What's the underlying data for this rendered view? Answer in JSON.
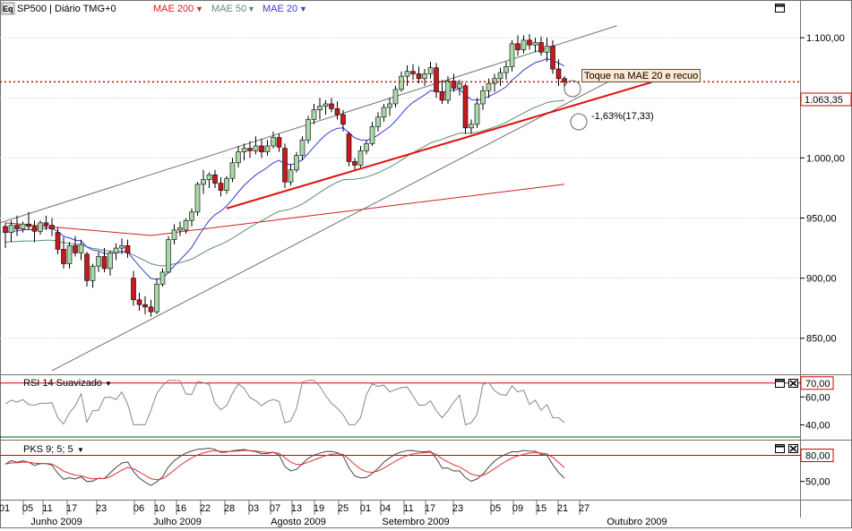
{
  "header": {
    "eq_badge": "Eq",
    "symbol": "SP500 | Diário TMG+0",
    "mae200": "MAE 200",
    "mae50": "MAE 50",
    "mae20": "MAE 20"
  },
  "colors": {
    "mae200": "#d22222",
    "mae50": "#5e8e6c",
    "mae20": "#3a3ad6",
    "up_candle": "#a8d8a8",
    "down_candle": "#c81820",
    "trend_red": "#e01010",
    "channel": "#707070",
    "price_line": "#d00000"
  },
  "annotations": {
    "toque": "Toque na MAE 20 e recuo",
    "percent": "-1,63%(17,33)",
    "last_price": "1.063,35"
  },
  "rsi": {
    "title": "RSI 14 Suavizado",
    "ticks": [
      "70,00",
      "60,00",
      "40,00"
    ]
  },
  "pks": {
    "title": "PKS 9; 5; 5",
    "ticks": [
      "80,00",
      "50,00"
    ]
  },
  "chart_data": {
    "type": "candlestick",
    "ylim": [
      820,
      1118
    ],
    "y_ticks": [
      850,
      900,
      950,
      1000,
      1050,
      1100
    ],
    "y_tick_labels": [
      "850,00",
      "900,00",
      "950,00",
      "1.000,00",
      "1.050,00",
      "1.100,00"
    ],
    "x_day_labels": [
      "01",
      "05",
      "11",
      "17",
      "23",
      "06",
      "10",
      "16",
      "22",
      "28",
      "03",
      "07",
      "13",
      "19",
      "25",
      "01",
      "04",
      "11",
      "17",
      "23",
      "05",
      "09",
      "15",
      "21",
      "27"
    ],
    "x_month_labels": [
      "Junho 2009",
      "Julho 2009",
      "Agosto 2009",
      "Setembro 2009",
      "Outubro 2009"
    ],
    "candles": [
      [
        943,
        946,
        925,
        938
      ],
      [
        938,
        948,
        930,
        944
      ],
      [
        944,
        952,
        935,
        941
      ],
      [
        941,
        947,
        938,
        945
      ],
      [
        945,
        955,
        940,
        943
      ],
      [
        943,
        948,
        930,
        939
      ],
      [
        939,
        948,
        936,
        946
      ],
      [
        946,
        952,
        940,
        944
      ],
      [
        944,
        950,
        935,
        941
      ],
      [
        938,
        942,
        920,
        924
      ],
      [
        924,
        934,
        908,
        912
      ],
      [
        912,
        930,
        908,
        927
      ],
      [
        927,
        935,
        918,
        921
      ],
      [
        921,
        932,
        915,
        928
      ],
      [
        920,
        922,
        893,
        898
      ],
      [
        898,
        912,
        892,
        910
      ],
      [
        910,
        922,
        905,
        918
      ],
      [
        918,
        925,
        905,
        908
      ],
      [
        908,
        923,
        902,
        921
      ],
      [
        921,
        929,
        915,
        925
      ],
      [
        925,
        933,
        920,
        927
      ],
      [
        927,
        932,
        917,
        921
      ],
      [
        900,
        906,
        877,
        882
      ],
      [
        882,
        888,
        873,
        878
      ],
      [
        878,
        885,
        870,
        876
      ],
      [
        876,
        882,
        868,
        872
      ],
      [
        872,
        900,
        870,
        895
      ],
      [
        895,
        908,
        893,
        905
      ],
      [
        905,
        935,
        904,
        932
      ],
      [
        932,
        945,
        928,
        940
      ],
      [
        940,
        947,
        935,
        942
      ],
      [
        940,
        950,
        937,
        948
      ],
      [
        948,
        958,
        943,
        955
      ],
      [
        955,
        980,
        952,
        978
      ],
      [
        978,
        990,
        970,
        982
      ],
      [
        982,
        988,
        975,
        986
      ],
      [
        986,
        990,
        975,
        979
      ],
      [
        979,
        984,
        968,
        973
      ],
      [
        973,
        985,
        970,
        983
      ],
      [
        983,
        1000,
        980,
        996
      ],
      [
        996,
        1010,
        992,
        1005
      ],
      [
        1005,
        1012,
        998,
        1008
      ],
      [
        1008,
        1014,
        1000,
        1006
      ],
      [
        1006,
        1018,
        1003,
        1010
      ],
      [
        1010,
        1016,
        1000,
        1005
      ],
      [
        1005,
        1015,
        1002,
        1010
      ],
      [
        1010,
        1022,
        1008,
        1017
      ],
      [
        1017,
        1020,
        1005,
        1009
      ],
      [
        1008,
        1012,
        975,
        980
      ],
      [
        980,
        995,
        977,
        990
      ],
      [
        990,
        1005,
        988,
        1002
      ],
      [
        1002,
        1018,
        998,
        1015
      ],
      [
        1015,
        1035,
        1012,
        1032
      ],
      [
        1032,
        1045,
        1028,
        1040
      ],
      [
        1040,
        1050,
        1032,
        1043
      ],
      [
        1043,
        1048,
        1036,
        1045
      ],
      [
        1045,
        1050,
        1038,
        1041
      ],
      [
        1041,
        1047,
        1032,
        1036
      ],
      [
        1036,
        1040,
        1022,
        1028
      ],
      [
        1020,
        1022,
        993,
        997
      ],
      [
        997,
        1000,
        990,
        994
      ],
      [
        994,
        1010,
        992,
        1006
      ],
      [
        1006,
        1015,
        1003,
        1012
      ],
      [
        1012,
        1030,
        1010,
        1026
      ],
      [
        1026,
        1038,
        1022,
        1034
      ],
      [
        1034,
        1045,
        1030,
        1042
      ],
      [
        1042,
        1050,
        1035,
        1045
      ],
      [
        1045,
        1060,
        1042,
        1057
      ],
      [
        1057,
        1072,
        1055,
        1068
      ],
      [
        1068,
        1077,
        1060,
        1072
      ],
      [
        1072,
        1078,
        1065,
        1070
      ],
      [
        1070,
        1076,
        1062,
        1066
      ],
      [
        1066,
        1074,
        1060,
        1070
      ],
      [
        1070,
        1080,
        1066,
        1075
      ],
      [
        1075,
        1079,
        1050,
        1055
      ],
      [
        1055,
        1065,
        1045,
        1048
      ],
      [
        1048,
        1068,
        1045,
        1064
      ],
      [
        1064,
        1070,
        1055,
        1058
      ],
      [
        1058,
        1065,
        1052,
        1062
      ],
      [
        1060,
        1062,
        1020,
        1025
      ],
      [
        1025,
        1032,
        1020,
        1028
      ],
      [
        1028,
        1050,
        1025,
        1045
      ],
      [
        1045,
        1060,
        1040,
        1056
      ],
      [
        1056,
        1066,
        1050,
        1062
      ],
      [
        1062,
        1070,
        1055,
        1066
      ],
      [
        1066,
        1075,
        1060,
        1071
      ],
      [
        1071,
        1080,
        1065,
        1076
      ],
      [
        1076,
        1098,
        1072,
        1095
      ],
      [
        1095,
        1102,
        1085,
        1090
      ],
      [
        1090,
        1102,
        1087,
        1098
      ],
      [
        1098,
        1103,
        1090,
        1094
      ],
      [
        1094,
        1100,
        1088,
        1096
      ],
      [
        1096,
        1101,
        1085,
        1088
      ],
      [
        1088,
        1100,
        1080,
        1093
      ],
      [
        1093,
        1098,
        1070,
        1074
      ],
      [
        1074,
        1082,
        1060,
        1066
      ],
      [
        1066,
        1068,
        1058,
        1063
      ]
    ],
    "trendline": {
      "from": [
        0,
        958
      ],
      "to": [
        0,
        1063
      ]
    }
  }
}
